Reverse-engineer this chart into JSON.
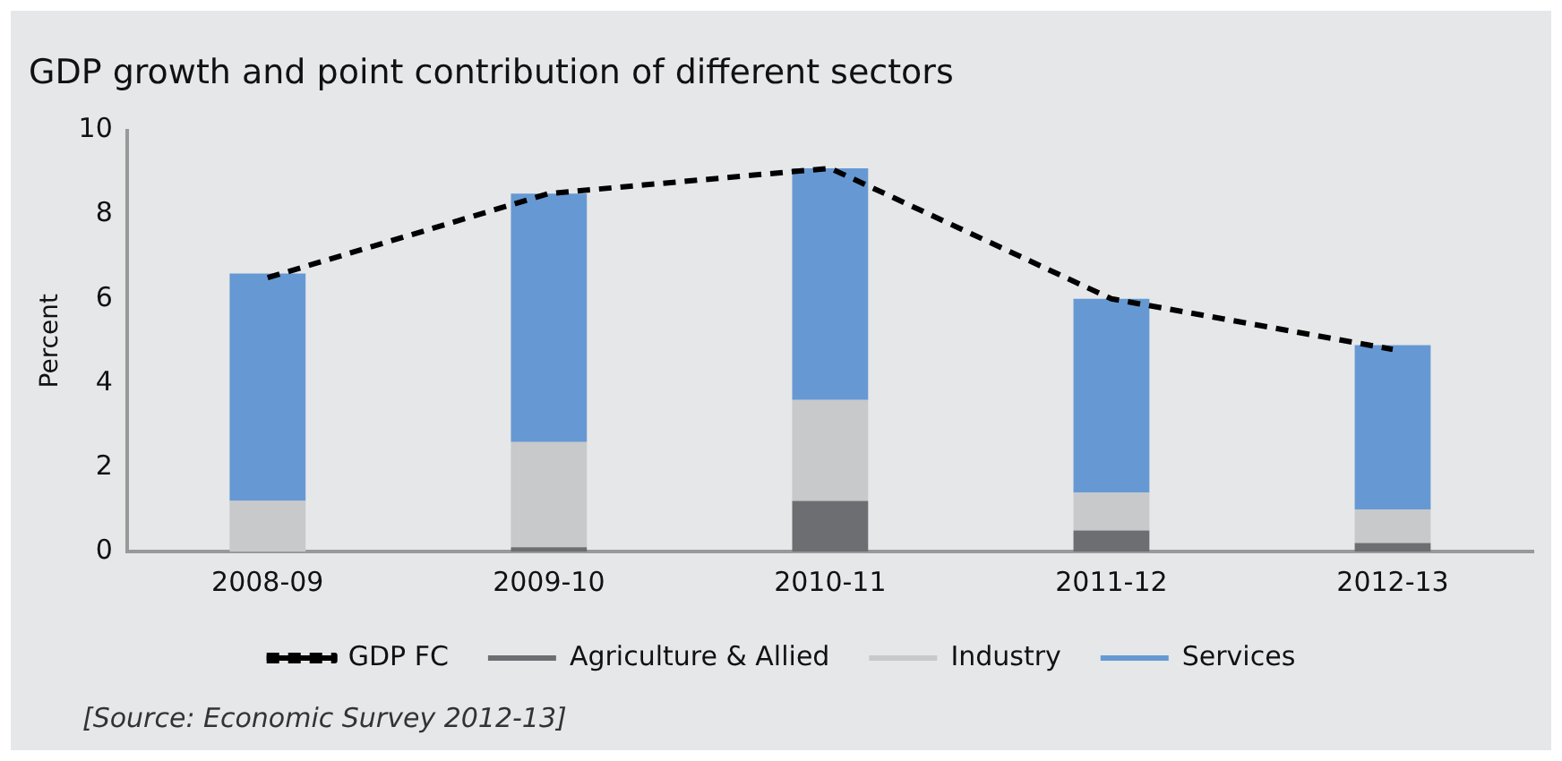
{
  "chart_data": {
    "type": "bar",
    "title": "GDP growth and point contribution of different sectors",
    "ylabel": "Percent",
    "categories": [
      "2008-09",
      "2009-10",
      "2010-11",
      "2011-12",
      "2012-13"
    ],
    "stacked": true,
    "series": [
      {
        "name": "Agriculture & Allied",
        "color": "#6d6e71",
        "values": [
          0,
          0.1,
          1.2,
          0.5,
          0.2
        ]
      },
      {
        "name": "Industry",
        "color": "#c8c9cb",
        "values": [
          1.2,
          2.5,
          2.4,
          0.9,
          0.8
        ]
      },
      {
        "name": "Services",
        "color": "#6699d3",
        "values": [
          5.4,
          5.9,
          5.5,
          4.6,
          3.9
        ]
      },
      {
        "name": "GDP FC",
        "type": "line",
        "color": "#000000",
        "line_style": "dashed",
        "marker": "none",
        "values": [
          6.5,
          8.5,
          9.1,
          6.0,
          4.8
        ]
      }
    ],
    "ylim": [
      0,
      10
    ],
    "yticks": [
      0,
      2,
      4,
      6,
      8,
      10
    ],
    "grid": false,
    "legend": "bottom",
    "annotations": [
      "[Source: Economic Survey 2012-13]"
    ]
  }
}
